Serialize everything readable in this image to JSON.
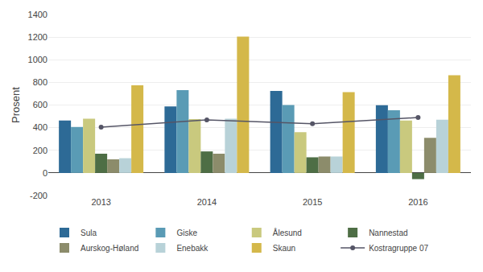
{
  "chart_data": {
    "type": "bar",
    "categories": [
      "2013",
      "2014",
      "2015",
      "2016"
    ],
    "series": [
      {
        "name": "Sula",
        "color": "#2d6a96",
        "values": [
          463,
          587,
          725,
          598
        ]
      },
      {
        "name": "Giske",
        "color": "#5a9bb5",
        "values": [
          406,
          731,
          600,
          553
        ]
      },
      {
        "name": "Ålesund",
        "color": "#c9c97e",
        "values": [
          480,
          475,
          360,
          463
        ]
      },
      {
        "name": "Nannestad",
        "color": "#4e6e45",
        "values": [
          170,
          190,
          138,
          -55
        ]
      },
      {
        "name": "Aurskog-Høland",
        "color": "#8c8c6b",
        "values": [
          120,
          170,
          145,
          310
        ]
      },
      {
        "name": "Enebakk",
        "color": "#b8d2d8",
        "values": [
          130,
          480,
          145,
          470
        ]
      },
      {
        "name": "Skaun",
        "color": "#d4b84a",
        "values": [
          775,
          1205,
          713,
          863
        ]
      },
      {
        "name": "Kostragruppe 07",
        "color": "#555566",
        "type": "line",
        "marker": "circle",
        "values": [
          405,
          468,
          435,
          490
        ]
      }
    ],
    "ylabel": "Prosent",
    "ylim": [
      -200,
      1400
    ],
    "yticks": [
      -200,
      0,
      200,
      400,
      600,
      800,
      1000,
      1200,
      1400
    ],
    "grid": true,
    "legend": "bottom"
  }
}
